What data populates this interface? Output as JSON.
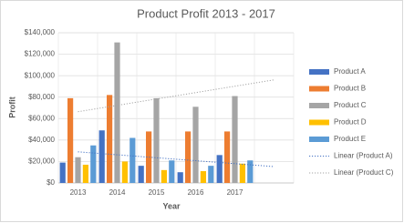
{
  "chart_data": {
    "type": "bar",
    "title": "Product Profit 2013 - 2017",
    "x_label": "Year",
    "y_label": "Profit",
    "categories": [
      "2013",
      "2014",
      "2015",
      "2016",
      "2017",
      null
    ],
    "series": [
      {
        "name": "Product A",
        "color": "#4472c4",
        "values": [
          19000,
          49000,
          16000,
          10000,
          26000,
          null
        ],
        "trendline_name": "Linear  (Product A)"
      },
      {
        "name": "Product B",
        "color": "#ed7d31",
        "values": [
          79000,
          82000,
          48000,
          48000,
          48000,
          null
        ]
      },
      {
        "name": "Product C",
        "color": "#a5a5a5",
        "values": [
          24000,
          131000,
          79000,
          71000,
          81000,
          null
        ],
        "trendline_name": "Linear  (Product C)"
      },
      {
        "name": "Product D",
        "color": "#ffc000",
        "values": [
          17000,
          20000,
          12000,
          11000,
          18000,
          null
        ]
      },
      {
        "name": "Product E",
        "color": "#5b9bd5",
        "values": [
          35000,
          42000,
          21000,
          16000,
          21000,
          null
        ]
      }
    ],
    "ylim": [
      0,
      140000
    ],
    "yticks": [
      {
        "value": 0,
        "label": "$0"
      },
      {
        "value": 20000,
        "label": "$20,000"
      },
      {
        "value": 40000,
        "label": "$40,000"
      },
      {
        "value": 60000,
        "label": "$60,000"
      },
      {
        "value": 80000,
        "label": "$80,000"
      },
      {
        "value": 100000,
        "label": "$100,000"
      },
      {
        "value": 120000,
        "label": "$120,000"
      },
      {
        "value": 140000,
        "label": "$140,000"
      }
    ],
    "grid": true,
    "legend": "right"
  }
}
